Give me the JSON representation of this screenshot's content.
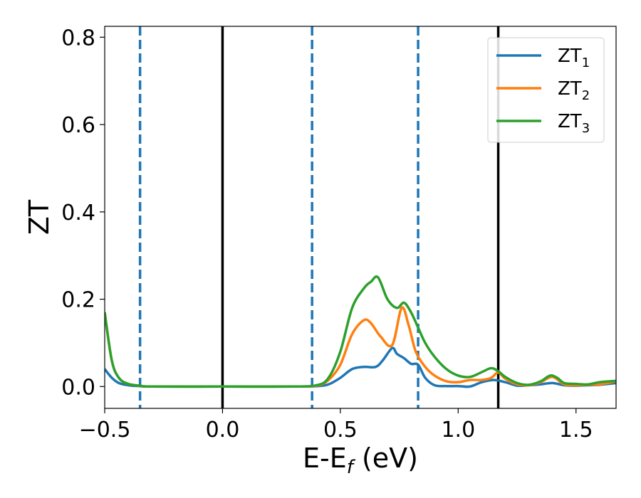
{
  "chart_data": {
    "type": "line",
    "title": "",
    "xlabel": "E-E",
    "xlabel_subscript": "f",
    "xlabel_unit": " (eV)",
    "ylabel": "ZT",
    "xlim": [
      -0.5,
      1.67
    ],
    "ylim": [
      -0.05,
      0.825
    ],
    "xticks": [
      -0.5,
      0.0,
      0.5,
      1.0,
      1.5
    ],
    "xtick_labels": [
      "−0.5",
      "0.0",
      "0.5",
      "1.0",
      "1.5"
    ],
    "yticks": [
      0.0,
      0.2,
      0.4,
      0.6,
      0.8
    ],
    "ytick_labels": [
      "0.0",
      "0.2",
      "0.4",
      "0.6",
      "0.8"
    ],
    "grid": false,
    "legend_position": "top-right",
    "vlines_solid": {
      "color": "#000000",
      "x": [
        0.0,
        1.17
      ]
    },
    "vlines_dashed": {
      "color": "#1f77b4",
      "x": [
        -0.35,
        0.38,
        0.83
      ]
    },
    "series": [
      {
        "name": "ZT",
        "name_subscript": "1",
        "color": "#1f77b4",
        "x": [
          -0.5,
          -0.47,
          -0.44,
          -0.4,
          -0.35,
          -0.3,
          0.0,
          0.3,
          0.4,
          0.45,
          0.5,
          0.55,
          0.6,
          0.65,
          0.68,
          0.72,
          0.74,
          0.77,
          0.8,
          0.83,
          0.86,
          0.9,
          0.95,
          1.0,
          1.05,
          1.1,
          1.15,
          1.2,
          1.25,
          1.3,
          1.35,
          1.4,
          1.45,
          1.5,
          1.55,
          1.6,
          1.67
        ],
        "y": [
          0.04,
          0.02,
          0.008,
          0.003,
          0.001,
          0.0,
          0.0,
          0.0,
          0.001,
          0.005,
          0.02,
          0.04,
          0.045,
          0.045,
          0.06,
          0.088,
          0.075,
          0.065,
          0.052,
          0.05,
          0.02,
          0.003,
          0.001,
          0.001,
          0.0,
          0.01,
          0.015,
          0.01,
          0.002,
          0.003,
          0.005,
          0.008,
          0.003,
          0.002,
          0.003,
          0.004,
          0.008
        ]
      },
      {
        "name": "ZT",
        "name_subscript": "2",
        "color": "#ff7f0e",
        "x": [
          -0.5,
          -0.47,
          -0.44,
          -0.4,
          -0.35,
          -0.3,
          0.0,
          0.3,
          0.4,
          0.45,
          0.5,
          0.55,
          0.6,
          0.63,
          0.67,
          0.72,
          0.76,
          0.79,
          0.82,
          0.86,
          0.9,
          0.95,
          1.0,
          1.05,
          1.1,
          1.14,
          1.17,
          1.2,
          1.25,
          1.3,
          1.35,
          1.4,
          1.45,
          1.5,
          1.55,
          1.6,
          1.67
        ],
        "y": [
          0.17,
          0.06,
          0.02,
          0.006,
          0.002,
          0.0,
          0.0,
          0.0,
          0.002,
          0.015,
          0.05,
          0.12,
          0.152,
          0.145,
          0.115,
          0.095,
          0.18,
          0.14,
          0.08,
          0.045,
          0.025,
          0.012,
          0.01,
          0.015,
          0.015,
          0.02,
          0.032,
          0.018,
          0.005,
          0.003,
          0.01,
          0.022,
          0.005,
          0.003,
          0.004,
          0.005,
          0.012
        ]
      },
      {
        "name": "ZT",
        "name_subscript": "3",
        "color": "#2ca02c",
        "x": [
          -0.5,
          -0.47,
          -0.44,
          -0.4,
          -0.35,
          -0.3,
          0.0,
          0.3,
          0.4,
          0.45,
          0.5,
          0.55,
          0.6,
          0.63,
          0.66,
          0.7,
          0.74,
          0.77,
          0.8,
          0.83,
          0.86,
          0.9,
          0.95,
          1.0,
          1.05,
          1.1,
          1.14,
          1.17,
          1.2,
          1.25,
          1.3,
          1.35,
          1.39,
          1.42,
          1.45,
          1.5,
          1.55,
          1.6,
          1.67
        ],
        "y": [
          0.17,
          0.06,
          0.02,
          0.006,
          0.002,
          0.0,
          0.0,
          0.0,
          0.003,
          0.02,
          0.08,
          0.18,
          0.225,
          0.24,
          0.25,
          0.2,
          0.18,
          0.192,
          0.17,
          0.135,
          0.1,
          0.068,
          0.04,
          0.025,
          0.022,
          0.033,
          0.042,
          0.035,
          0.022,
          0.008,
          0.004,
          0.012,
          0.025,
          0.02,
          0.008,
          0.006,
          0.005,
          0.01,
          0.013
        ]
      }
    ]
  }
}
